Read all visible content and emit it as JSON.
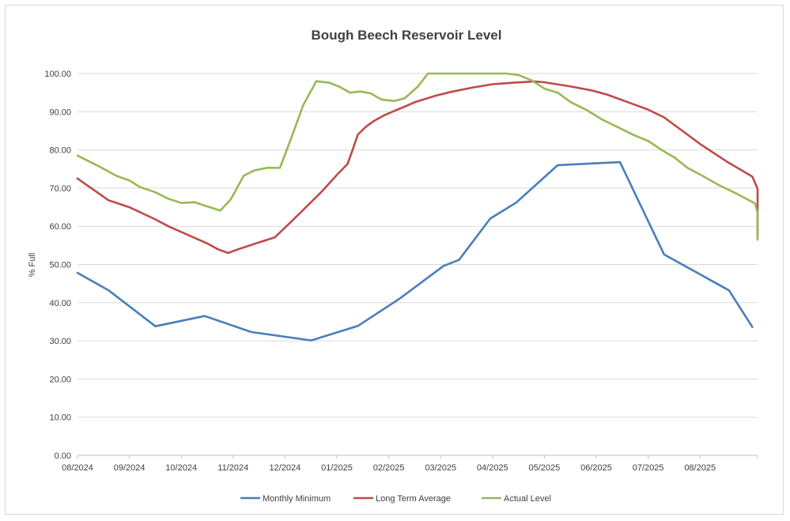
{
  "chart_data": {
    "type": "line",
    "title": "Bough Beech Reservoir Level",
    "xlabel": "",
    "ylabel": "% Full",
    "ylim": [
      0,
      100
    ],
    "yticks": [
      "0.00",
      "10.00",
      "20.00",
      "30.00",
      "40.00",
      "50.00",
      "60.00",
      "70.00",
      "80.00",
      "90.00",
      "100.00"
    ],
    "xticks": [
      "08/2024",
      "09/2024",
      "10/2024",
      "11/2024",
      "12/2024",
      "01/2025",
      "02/2025",
      "03/2025",
      "04/2025",
      "05/2025",
      "06/2025",
      "07/2025",
      "08/2025"
    ],
    "grid": "horizontal",
    "legend_position": "bottom",
    "series": [
      {
        "name": "Monthly Minimum",
        "color": "#4a7ebb",
        "points": [
          [
            0,
            47.8
          ],
          [
            0.6,
            43.2
          ],
          [
            1.5,
            33.8
          ],
          [
            2.45,
            36.5
          ],
          [
            3.35,
            32.3
          ],
          [
            4.5,
            30.1
          ],
          [
            5.4,
            33.9
          ],
          [
            6.2,
            41.0
          ],
          [
            7.05,
            49.6
          ],
          [
            7.35,
            51.2
          ],
          [
            7.95,
            62.0
          ],
          [
            8.45,
            66.2
          ],
          [
            9.25,
            76.0
          ],
          [
            10.45,
            76.8
          ],
          [
            11.3,
            52.6
          ],
          [
            12.55,
            43.2
          ],
          [
            13.0,
            33.6
          ]
        ]
      },
      {
        "name": "Long Term Average",
        "color": "#be4b48",
        "points": [
          [
            0,
            72.5
          ],
          [
            0.6,
            66.8
          ],
          [
            1.0,
            65.0
          ],
          [
            1.5,
            61.8
          ],
          [
            1.75,
            60.0
          ],
          [
            2.0,
            58.5
          ],
          [
            2.25,
            57.0
          ],
          [
            2.5,
            55.5
          ],
          [
            2.7,
            54.0
          ],
          [
            2.9,
            53.0
          ],
          [
            3.1,
            54.0
          ],
          [
            3.5,
            55.8
          ],
          [
            3.8,
            57.1
          ],
          [
            4.1,
            61.0
          ],
          [
            4.4,
            65.0
          ],
          [
            4.7,
            69.0
          ],
          [
            5.0,
            73.5
          ],
          [
            5.2,
            76.3
          ],
          [
            5.3,
            80.0
          ],
          [
            5.4,
            84.0
          ],
          [
            5.55,
            86.0
          ],
          [
            5.7,
            87.5
          ],
          [
            5.9,
            89.0
          ],
          [
            6.1,
            90.2
          ],
          [
            6.3,
            91.3
          ],
          [
            6.5,
            92.5
          ],
          [
            6.9,
            94.2
          ],
          [
            7.2,
            95.2
          ],
          [
            7.6,
            96.3
          ],
          [
            8.0,
            97.2
          ],
          [
            8.4,
            97.6
          ],
          [
            8.8,
            97.9
          ],
          [
            9.0,
            97.7
          ],
          [
            9.5,
            96.6
          ],
          [
            9.9,
            95.6
          ],
          [
            10.2,
            94.5
          ],
          [
            10.6,
            92.5
          ],
          [
            11.0,
            90.5
          ],
          [
            11.3,
            88.5
          ],
          [
            11.6,
            85.5
          ],
          [
            12.0,
            81.5
          ],
          [
            12.5,
            77.0
          ],
          [
            13.0,
            73.0
          ],
          [
            13.4,
            69.8
          ],
          [
            13.8,
            66.5
          ],
          [
            14.2,
            63.5
          ],
          [
            14.6,
            60.5
          ],
          [
            15.0,
            57.5
          ],
          [
            15.0,
            64.3
          ]
        ]
      },
      {
        "name": "Actual Level",
        "color": "#98b954",
        "points": [
          [
            0,
            78.5
          ],
          [
            0.4,
            75.8
          ],
          [
            0.75,
            73.2
          ],
          [
            1.0,
            72.0
          ],
          [
            1.2,
            70.3
          ],
          [
            1.5,
            68.9
          ],
          [
            1.75,
            67.2
          ],
          [
            2.0,
            66.1
          ],
          [
            2.25,
            66.3
          ],
          [
            2.55,
            65.0
          ],
          [
            2.75,
            64.1
          ],
          [
            2.95,
            67.0
          ],
          [
            3.2,
            73.2
          ],
          [
            3.4,
            74.6
          ],
          [
            3.65,
            75.3
          ],
          [
            3.9,
            75.3
          ],
          [
            4.1,
            82.5
          ],
          [
            4.35,
            91.8
          ],
          [
            4.6,
            98.0
          ],
          [
            4.85,
            97.6
          ],
          [
            5.05,
            96.5
          ],
          [
            5.25,
            95.0
          ],
          [
            5.45,
            95.3
          ],
          [
            5.65,
            94.8
          ],
          [
            5.85,
            93.2
          ],
          [
            6.1,
            92.8
          ],
          [
            6.3,
            93.5
          ],
          [
            6.55,
            96.5
          ],
          [
            6.75,
            100.0
          ],
          [
            7.0,
            100.0
          ],
          [
            7.5,
            100.0
          ],
          [
            8.0,
            100.0
          ],
          [
            8.25,
            100.0
          ],
          [
            8.5,
            99.6
          ],
          [
            8.75,
            98.2
          ],
          [
            9.0,
            96.0
          ],
          [
            9.25,
            95.0
          ],
          [
            9.5,
            92.5
          ],
          [
            9.8,
            90.5
          ],
          [
            10.1,
            88.0
          ],
          [
            10.4,
            86.0
          ],
          [
            10.7,
            84.0
          ],
          [
            11.0,
            82.3
          ],
          [
            11.25,
            80.0
          ],
          [
            11.5,
            78.0
          ],
          [
            11.75,
            75.3
          ],
          [
            12.0,
            73.5
          ],
          [
            12.35,
            70.8
          ],
          [
            12.7,
            68.5
          ],
          [
            13.05,
            66.0
          ],
          [
            13.4,
            63.5
          ],
          [
            13.7,
            61.0
          ],
          [
            14.0,
            58.5
          ],
          [
            14.3,
            56.5
          ]
        ]
      }
    ]
  }
}
